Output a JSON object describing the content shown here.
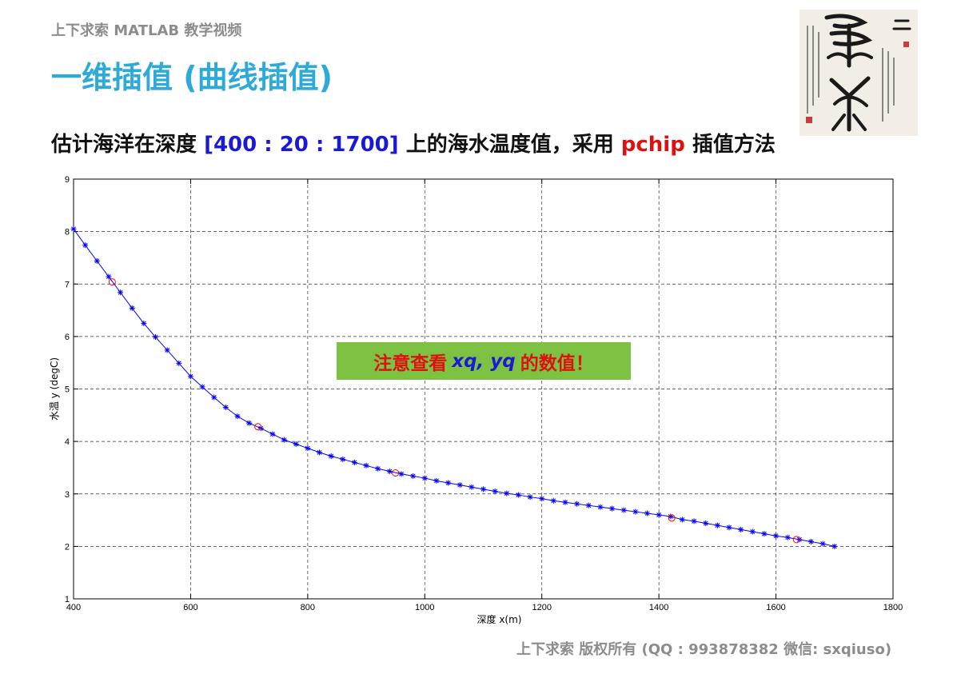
{
  "header": {
    "brand": "上下求索 MATLAB 教学视频",
    "title": "一维插值 (曲线插值)",
    "subtitle_prefix": "估计海洋在深度 ",
    "subtitle_range": "[400 : 20 : 1700]",
    "subtitle_middle": " 上的海水温度值，采用 ",
    "subtitle_method": "pchip",
    "subtitle_suffix": " 插值方法"
  },
  "callout": {
    "prefix": "注意查看",
    "vars": "xq, yq",
    "suffix": "的数值！"
  },
  "footer": {
    "text": "上下求索  版权所有  (QQ : 993878382   微信: sxqiuso)"
  },
  "colors": {
    "title": "#2eaad8",
    "range": "#1a1ad6",
    "method": "#e01010",
    "callout_bg": "#7dc242",
    "line": "#0000ff",
    "sample_marker": "#ff0000"
  },
  "chart_data": {
    "type": "line",
    "xlabel": "深度 x(m)",
    "ylabel": "水温 y (degC)",
    "xlim": [
      400,
      1800
    ],
    "ylim": [
      1,
      9
    ],
    "xticks": [
      400,
      600,
      800,
      1000,
      1200,
      1400,
      1600,
      1800
    ],
    "yticks": [
      1,
      2,
      3,
      4,
      5,
      6,
      7,
      8,
      9
    ],
    "grid": true,
    "samples": {
      "x": [
        466,
        715,
        950,
        1422,
        1635
      ],
      "y": [
        7.04,
        4.28,
        3.4,
        2.54,
        2.13
      ]
    },
    "interpolated": {
      "x": [
        400,
        420,
        440,
        460,
        480,
        500,
        520,
        540,
        560,
        580,
        600,
        620,
        640,
        660,
        680,
        700,
        720,
        740,
        760,
        780,
        800,
        820,
        840,
        860,
        880,
        900,
        920,
        940,
        960,
        980,
        1000,
        1020,
        1040,
        1060,
        1080,
        1100,
        1120,
        1140,
        1160,
        1180,
        1200,
        1220,
        1240,
        1260,
        1280,
        1300,
        1320,
        1340,
        1360,
        1380,
        1400,
        1420,
        1440,
        1460,
        1480,
        1500,
        1520,
        1540,
        1560,
        1580,
        1600,
        1620,
        1640,
        1660,
        1680,
        1700
      ],
      "y": [
        8.05,
        7.74,
        7.44,
        7.14,
        6.84,
        6.54,
        6.25,
        5.99,
        5.74,
        5.49,
        5.24,
        5.04,
        4.84,
        4.65,
        4.48,
        4.35,
        4.25,
        4.14,
        4.03,
        3.95,
        3.87,
        3.79,
        3.72,
        3.66,
        3.6,
        3.54,
        3.48,
        3.43,
        3.38,
        3.34,
        3.3,
        3.25,
        3.21,
        3.17,
        3.13,
        3.09,
        3.05,
        3.01,
        2.98,
        2.94,
        2.91,
        2.87,
        2.84,
        2.81,
        2.78,
        2.75,
        2.72,
        2.69,
        2.66,
        2.63,
        2.6,
        2.57,
        2.51,
        2.48,
        2.44,
        2.4,
        2.36,
        2.32,
        2.28,
        2.24,
        2.2,
        2.17,
        2.13,
        2.09,
        2.05,
        2.0
      ]
    }
  }
}
